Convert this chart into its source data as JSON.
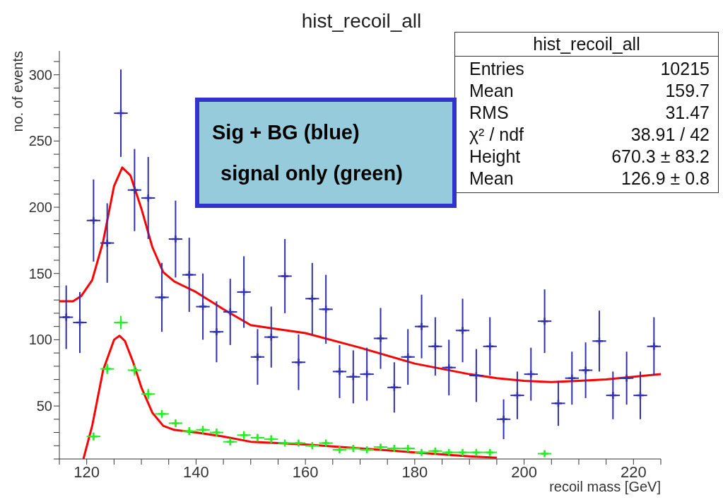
{
  "chart_data": {
    "type": "scatter",
    "title": "hist_recoil_all",
    "xlabel": "recoil mass [GeV]",
    "ylabel": "no. of events",
    "xlim": [
      115,
      225
    ],
    "xticks": [
      {
        "value": 115,
        "label": null
      },
      120,
      {
        "value": 125,
        "label": null
      },
      {
        "value": 130,
        "label": null
      },
      {
        "value": 135,
        "label": null
      },
      140,
      {
        "value": 145,
        "label": null
      },
      {
        "value": 150,
        "label": null
      },
      {
        "value": 155,
        "label": null
      },
      160,
      {
        "value": 165,
        "label": null
      },
      {
        "value": 170,
        "label": null
      },
      {
        "value": 175,
        "label": null
      },
      180,
      {
        "value": 185,
        "label": null
      },
      {
        "value": 190,
        "label": null
      },
      {
        "value": 195,
        "label": null
      },
      200,
      {
        "value": 205,
        "label": null
      },
      {
        "value": 210,
        "label": null
      },
      {
        "value": 215,
        "label": null
      },
      220,
      {
        "value": 225,
        "label": null
      }
    ],
    "ylim": [
      10,
      318
    ],
    "yticks": [
      {
        "value": 10,
        "label": null
      },
      {
        "value": 20,
        "label": null
      },
      {
        "value": 30,
        "label": null
      },
      {
        "value": 40,
        "label": null
      },
      50,
      {
        "value": 60,
        "label": null
      },
      {
        "value": 70,
        "label": null
      },
      {
        "value": 80,
        "label": null
      },
      {
        "value": 90,
        "label": null
      },
      100,
      {
        "value": 110,
        "label": null
      },
      {
        "value": 120,
        "label": null
      },
      {
        "value": 130,
        "label": null
      },
      {
        "value": 140,
        "label": null
      },
      150,
      {
        "value": 160,
        "label": null
      },
      {
        "value": 170,
        "label": null
      },
      {
        "value": 180,
        "label": null
      },
      {
        "value": 190,
        "label": null
      },
      200,
      {
        "value": 210,
        "label": null
      },
      {
        "value": 220,
        "label": null
      },
      {
        "value": 230,
        "label": null
      },
      {
        "value": 240,
        "label": null
      },
      250,
      {
        "value": 260,
        "label": null
      },
      {
        "value": 270,
        "label": null
      },
      {
        "value": 280,
        "label": null
      },
      {
        "value": 290,
        "label": null
      },
      300,
      {
        "value": 310,
        "label": null
      }
    ],
    "marker": "cross",
    "annotations": [
      "hist_recoil_all",
      "Entries",
      "10215",
      "Mean",
      "159.7",
      "RMS",
      "31.47",
      "χ² / ndf",
      "38.91 / 42",
      "Height",
      "670.3 ± 83.2",
      "Mean",
      "126.9 ± 0.8",
      "Sig + BG (blue)",
      "signal only (green)"
    ],
    "series": [
      {
        "color": "#3030b0",
        "x": [
          116.25,
          118.75,
          121.25,
          123.75,
          126.25,
          128.75,
          131.25,
          133.75,
          136.25,
          138.75,
          141.25,
          143.75,
          146.25,
          148.75,
          151.25,
          153.75,
          156.25,
          158.75,
          161.25,
          163.75,
          166.25,
          168.75,
          171.25,
          173.75,
          176.25,
          178.75,
          181.25,
          183.75,
          186.25,
          188.75,
          191.25,
          193.75,
          196.25,
          198.75,
          201.25,
          203.75,
          206.25,
          208.75,
          211.25,
          213.75,
          216.25,
          218.75,
          221.25,
          223.75
        ],
        "values": [
          117,
          113,
          190,
          173,
          271,
          213,
          207,
          132,
          176,
          149,
          125,
          106,
          121,
          136,
          87,
          102,
          148,
          83,
          131,
          123,
          76,
          72,
          74,
          101,
          64,
          87,
          110,
          95,
          79,
          107,
          73,
          95,
          40,
          58,
          74,
          114,
          52,
          71,
          77,
          99,
          58,
          71,
          58,
          95
        ],
        "errors": [
          24,
          23,
          31,
          30,
          33,
          31,
          31,
          26,
          29,
          28,
          25,
          23,
          25,
          27,
          21,
          23,
          28,
          21,
          27,
          26,
          20,
          20,
          20,
          23,
          19,
          21,
          24,
          22,
          21,
          24,
          20,
          22,
          15,
          18,
          20,
          24,
          17,
          20,
          21,
          23,
          18,
          20,
          18,
          22
        ],
        "xerrors": [
          1.25,
          1.25,
          1.25,
          1.25,
          1.25,
          1.25,
          1.25,
          1.25,
          1.25,
          1.25,
          1.25,
          1.25,
          1.25,
          1.25,
          1.25,
          1.25,
          1.25,
          1.25,
          1.25,
          1.25,
          1.25,
          1.25,
          1.25,
          1.25,
          1.25,
          1.25,
          1.25,
          1.25,
          1.25,
          1.25,
          1.25,
          1.25,
          1.25,
          1.25,
          1.25,
          1.25,
          1.25,
          1.25,
          1.25,
          1.25,
          1.25,
          1.25,
          1.25,
          1.25
        ]
      },
      {
        "color": "#22ee22",
        "x": [
          121.25,
          123.75,
          126.25,
          128.75,
          131.25,
          133.75,
          136.25,
          138.75,
          141.25,
          143.75,
          146.25,
          148.75,
          151.25,
          153.75,
          156.25,
          158.75,
          161.25,
          163.75,
          166.25,
          168.75,
          171.25,
          173.75,
          176.25,
          178.75,
          181.25,
          183.75,
          186.25,
          188.75,
          191.25,
          193.75,
          203.75
        ],
        "values": [
          27,
          78,
          113,
          77,
          59,
          44,
          37,
          31,
          32,
          30,
          23,
          28,
          26,
          25,
          22,
          22,
          20,
          22,
          17,
          18,
          17,
          19,
          18,
          18,
          15,
          16,
          15,
          15,
          15,
          15,
          14
        ],
        "errors": [
          3,
          4,
          5,
          4,
          4,
          3,
          3,
          3,
          3,
          3,
          2,
          3,
          3,
          3,
          2,
          2,
          2,
          2,
          2,
          2,
          2,
          2,
          2,
          2,
          2,
          2,
          2,
          2,
          2,
          2,
          2
        ],
        "xerrors": [
          1.25,
          1.25,
          1.25,
          1.25,
          1.25,
          1.25,
          1.25,
          1.25,
          1.25,
          1.25,
          1.25,
          1.25,
          1.25,
          1.25,
          1.25,
          1.25,
          1.25,
          1.25,
          1.25,
          1.25,
          1.25,
          1.25,
          1.25,
          1.25,
          1.25,
          1.25,
          1.25,
          1.25,
          1.25,
          1.25,
          1.25
        ]
      },
      {
        "type": "line",
        "marker": "none",
        "color": "#ff0000",
        "x": [
          115,
          117.5,
          119,
          121,
          123,
          125,
          126.5,
          128,
          130,
          132,
          134,
          136,
          140,
          145,
          150,
          155,
          160,
          170,
          180,
          190,
          195,
          200,
          205,
          210,
          215,
          220,
          225
        ],
        "values": [
          129,
          129,
          133,
          145,
          174,
          216,
          230,
          224,
          199,
          170,
          151,
          144,
          136,
          123,
          111,
          108,
          105,
          94,
          82,
          74,
          71,
          69,
          68,
          69,
          70,
          72,
          74
        ]
      },
      {
        "type": "line",
        "marker": "none",
        "color": "#ff0000",
        "x": [
          119.4,
          121,
          123,
          125,
          126,
          127,
          128.5,
          130,
          132,
          134,
          136,
          140,
          145,
          150,
          155,
          160,
          165,
          170,
          175,
          180,
          185,
          190,
          195
        ],
        "values": [
          10,
          35,
          77,
          100,
          103,
          99,
          83,
          64,
          45,
          35,
          32,
          30,
          27,
          23,
          22,
          21,
          19.5,
          18,
          16.5,
          15,
          13.5,
          12,
          11
        ]
      }
    ]
  }
}
